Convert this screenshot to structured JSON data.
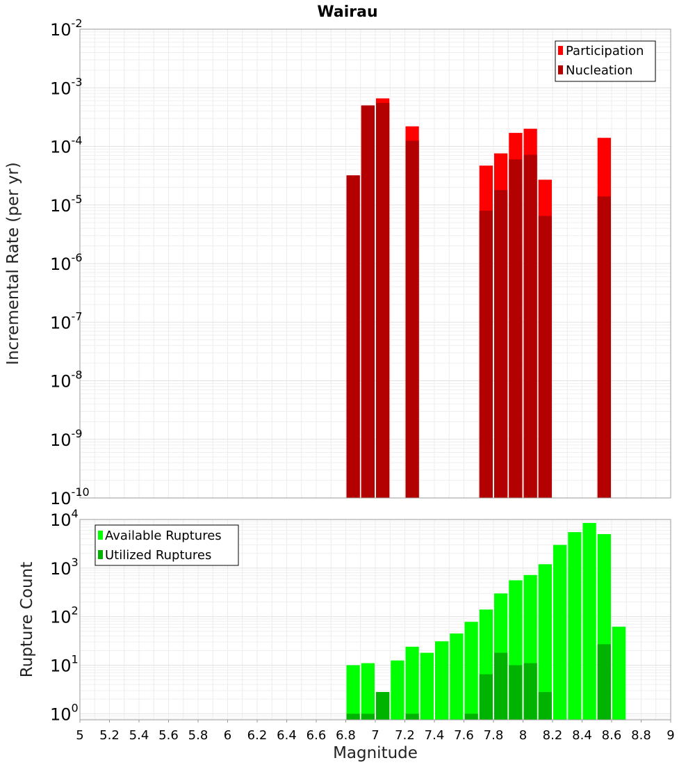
{
  "chart_data": [
    {
      "type": "bar",
      "panel": "top",
      "title": "Wairau",
      "xlabel": "",
      "ylabel": "Incremental Rate (per yr)",
      "xlim": [
        5,
        9
      ],
      "ylim": [
        1e-10,
        0.01
      ],
      "yscale": "log",
      "bin_width": 0.1,
      "grid": true,
      "legend_position": "top-right",
      "yticks": [
        {
          "base": "10",
          "exp": "-2"
        },
        {
          "base": "10",
          "exp": "-3"
        },
        {
          "base": "10",
          "exp": "-4"
        },
        {
          "base": "10",
          "exp": "-5"
        },
        {
          "base": "10",
          "exp": "-6"
        },
        {
          "base": "10",
          "exp": "-7"
        },
        {
          "base": "10",
          "exp": "-8"
        },
        {
          "base": "10",
          "exp": "-9"
        },
        {
          "base": "10",
          "exp": "-10"
        }
      ],
      "series": [
        {
          "name": "Participation",
          "color": "#ff0000",
          "points": [
            {
              "x": 6.85,
              "y": 3.2e-05
            },
            {
              "x": 6.95,
              "y": 0.0005
            },
            {
              "x": 7.05,
              "y": 0.00066
            },
            {
              "x": 7.25,
              "y": 0.00022
            },
            {
              "x": 7.75,
              "y": 4.7e-05
            },
            {
              "x": 7.85,
              "y": 7.6e-05
            },
            {
              "x": 7.95,
              "y": 0.00017
            },
            {
              "x": 8.05,
              "y": 0.0002
            },
            {
              "x": 8.15,
              "y": 2.7e-05
            },
            {
              "x": 8.55,
              "y": 0.00014
            }
          ]
        },
        {
          "name": "Nucleation",
          "color": "#b30000",
          "points": [
            {
              "x": 6.85,
              "y": 3.2e-05
            },
            {
              "x": 6.95,
              "y": 0.0005
            },
            {
              "x": 7.05,
              "y": 0.00055
            },
            {
              "x": 7.25,
              "y": 0.000125
            },
            {
              "x": 7.75,
              "y": 8e-06
            },
            {
              "x": 7.85,
              "y": 1.8e-05
            },
            {
              "x": 7.95,
              "y": 6e-05
            },
            {
              "x": 8.05,
              "y": 7.2e-05
            },
            {
              "x": 8.15,
              "y": 6.5e-06
            },
            {
              "x": 8.55,
              "y": 1.4e-05
            }
          ]
        }
      ]
    },
    {
      "type": "bar",
      "panel": "bottom",
      "title": "",
      "xlabel": "Magnitude",
      "ylabel": "Rupture Count",
      "xlim": [
        5,
        9
      ],
      "ylim": [
        0.75,
        10000
      ],
      "yscale": "log",
      "bin_width": 0.1,
      "grid": true,
      "legend_position": "top-left",
      "xticks": [
        "5",
        "5.2",
        "5.4",
        "5.6",
        "5.8",
        "6",
        "6.2",
        "6.4",
        "6.6",
        "6.8",
        "7",
        "7.2",
        "7.4",
        "7.6",
        "7.8",
        "8",
        "8.2",
        "8.4",
        "8.6",
        "8.8",
        "9"
      ],
      "yticks": [
        {
          "base": "10",
          "exp": "4"
        },
        {
          "base": "10",
          "exp": "3"
        },
        {
          "base": "10",
          "exp": "2"
        },
        {
          "base": "10",
          "exp": "1"
        },
        {
          "base": "10",
          "exp": "0"
        }
      ],
      "series": [
        {
          "name": "Available Ruptures",
          "color": "#00ff00",
          "points": [
            {
              "x": 6.85,
              "y": 10
            },
            {
              "x": 6.95,
              "y": 11
            },
            {
              "x": 7.05,
              "y": 2.8
            },
            {
              "x": 7.15,
              "y": 12.5
            },
            {
              "x": 7.25,
              "y": 24
            },
            {
              "x": 7.35,
              "y": 18
            },
            {
              "x": 7.45,
              "y": 31
            },
            {
              "x": 7.55,
              "y": 45
            },
            {
              "x": 7.65,
              "y": 78
            },
            {
              "x": 7.75,
              "y": 140
            },
            {
              "x": 7.85,
              "y": 300
            },
            {
              "x": 7.95,
              "y": 560
            },
            {
              "x": 8.05,
              "y": 720
            },
            {
              "x": 8.15,
              "y": 1200
            },
            {
              "x": 8.25,
              "y": 3000
            },
            {
              "x": 8.35,
              "y": 5500
            },
            {
              "x": 8.45,
              "y": 8500
            },
            {
              "x": 8.55,
              "y": 5000
            },
            {
              "x": 8.65,
              "y": 62
            }
          ]
        },
        {
          "name": "Utilized Ruptures",
          "color": "#00b300",
          "points": [
            {
              "x": 6.85,
              "y": 1
            },
            {
              "x": 6.95,
              "y": 1
            },
            {
              "x": 7.05,
              "y": 2.8
            },
            {
              "x": 7.25,
              "y": 1
            },
            {
              "x": 7.65,
              "y": 1
            },
            {
              "x": 7.75,
              "y": 6.5
            },
            {
              "x": 7.85,
              "y": 18
            },
            {
              "x": 7.95,
              "y": 10
            },
            {
              "x": 8.05,
              "y": 11
            },
            {
              "x": 8.15,
              "y": 2.8
            },
            {
              "x": 8.55,
              "y": 27
            }
          ]
        }
      ]
    }
  ]
}
